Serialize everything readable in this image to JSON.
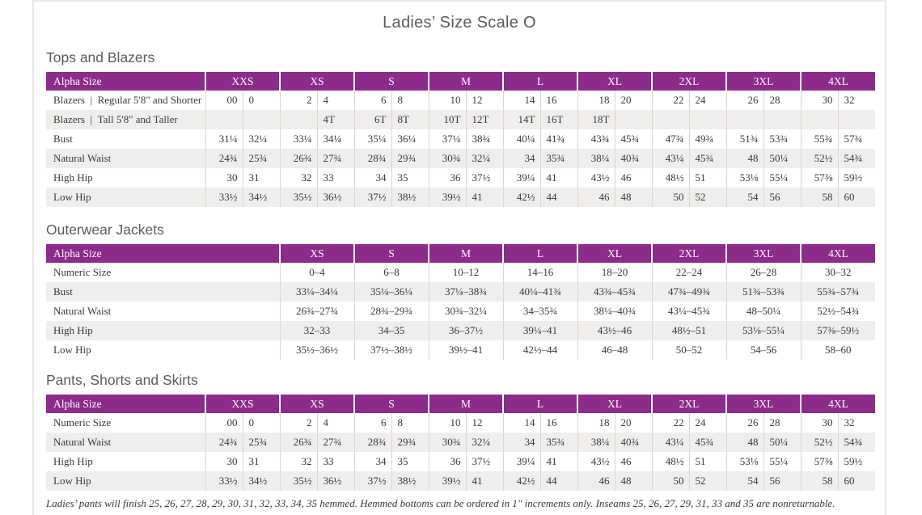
{
  "page": {
    "title": "Ladies’ Size Scale O",
    "footnote": "Ladies’ pants will finish 25, 26, 27, 28, 29, 30, 31, 32, 33, 34, 35 hemmed. Hemmed bottoms can be ordered in 1\" increments only. Inseams 25, 26, 27, 29, 31, 33 and 35 are nonreturnable."
  },
  "colors": {
    "accent_purple": "#8c2b89",
    "row_stripe": "#f0eeec",
    "heading_gray": "#595b5e",
    "cell_border": "#d9d6d3",
    "page_border": "#e9e5e6"
  },
  "tables": [
    {
      "section_title": "Tops and Blazers",
      "corner_label": "Alpha Size",
      "sizes": [
        "XXS",
        "XS",
        "S",
        "M",
        "L",
        "XL",
        "2XL",
        "3XL",
        "4XL"
      ],
      "columns_per_size": 2,
      "rows": [
        {
          "label": "Blazers | Regular 5'8\" and Shorter",
          "values": [
            "00",
            "0",
            "2",
            "4",
            "6",
            "8",
            "10",
            "12",
            "14",
            "16",
            "18",
            "20",
            "22",
            "24",
            "26",
            "28",
            "30",
            "32"
          ]
        },
        {
          "label": "Blazers | Tall 5'8\" and Taller",
          "values": [
            "",
            "",
            "",
            "4T",
            "6T",
            "8T",
            "10T",
            "12T",
            "14T",
            "16T",
            "18T",
            "",
            "",
            "",
            "",
            "",
            "",
            ""
          ]
        },
        {
          "label": "Bust",
          "values": [
            "31¼",
            "32¼",
            "33¼",
            "34¼",
            "35¼",
            "36¼",
            "37¼",
            "38¾",
            "40¼",
            "41¾",
            "43¾",
            "45¾",
            "47¾",
            "49¾",
            "51¾",
            "53¾",
            "55¾",
            "57¾"
          ]
        },
        {
          "label": "Natural Waist",
          "values": [
            "24¾",
            "25¾",
            "26¾",
            "27¾",
            "28¾",
            "29¾",
            "30¾",
            "32¼",
            "34",
            "35¾",
            "38¼",
            "40¾",
            "43¼",
            "45¾",
            "48",
            "50¼",
            "52½",
            "54¾"
          ]
        },
        {
          "label": "High Hip",
          "values": [
            "30",
            "31",
            "32",
            "33",
            "34",
            "35",
            "36",
            "37½",
            "39¼",
            "41",
            "43½",
            "46",
            "48½",
            "51",
            "53⅛",
            "55¼",
            "57⅜",
            "59½"
          ]
        },
        {
          "label": "Low Hip",
          "values": [
            "33½",
            "34½",
            "35½",
            "36½",
            "37½",
            "38½",
            "39½",
            "41",
            "42½",
            "44",
            "46",
            "48",
            "50",
            "52",
            "54",
            "56",
            "58",
            "60"
          ]
        }
      ]
    },
    {
      "section_title": "Outerwear Jackets",
      "corner_label": "Alpha Size",
      "sizes": [
        "XS",
        "S",
        "M",
        "L",
        "XL",
        "2XL",
        "3XL",
        "4XL"
      ],
      "columns_per_size": 1,
      "rows": [
        {
          "label": "Numeric Size",
          "values": [
            "0–4",
            "6–8",
            "10–12",
            "14–16",
            "18–20",
            "22–24",
            "26–28",
            "30–32"
          ]
        },
        {
          "label": "Bust",
          "values": [
            "33¼–34¼",
            "35¼–36¼",
            "37¼–38¾",
            "40¼–41¾",
            "43¾–45¾",
            "47¾–49¾",
            "51¾–53¾",
            "55¾–57¾"
          ]
        },
        {
          "label": "Natural Waist",
          "values": [
            "26¾–27¾",
            "28¾–29¾",
            "30¾–32¼",
            "34–35¾",
            "38¼–40¾",
            "43¼–45¾",
            "48–50¼",
            "52½–54¾"
          ]
        },
        {
          "label": "High Hip",
          "values": [
            "32–33",
            "34–35",
            "36–37½",
            "39¼–41",
            "43½–46",
            "48½–51",
            "53⅛–55¼",
            "57⅜–59½"
          ]
        },
        {
          "label": "Low Hip",
          "values": [
            "35½–36½",
            "37½–38½",
            "39½–41",
            "42½–44",
            "46–48",
            "50–52",
            "54–56",
            "58–60"
          ]
        }
      ]
    },
    {
      "section_title": "Pants, Shorts and Skirts",
      "corner_label": "Alpha Size",
      "sizes": [
        "XXS",
        "XS",
        "S",
        "M",
        "L",
        "XL",
        "2XL",
        "3XL",
        "4XL"
      ],
      "columns_per_size": 2,
      "rows": [
        {
          "label": "Numeric Size",
          "values": [
            "00",
            "0",
            "2",
            "4",
            "6",
            "8",
            "10",
            "12",
            "14",
            "16",
            "18",
            "20",
            "22",
            "24",
            "26",
            "28",
            "30",
            "32"
          ]
        },
        {
          "label": "Natural Waist",
          "values": [
            "24¾",
            "25¾",
            "26¾",
            "27¾",
            "28¾",
            "29¾",
            "30¾",
            "32¼",
            "34",
            "35¾",
            "38¼",
            "40¾",
            "43¼",
            "45¾",
            "48",
            "50¼",
            "52½",
            "54¾"
          ]
        },
        {
          "label": "High Hip",
          "values": [
            "30",
            "31",
            "32",
            "33",
            "34",
            "35",
            "36",
            "37½",
            "39¼",
            "41",
            "43½",
            "46",
            "48½",
            "51",
            "53⅛",
            "55¼",
            "57⅜",
            "59½"
          ]
        },
        {
          "label": "Low Hip",
          "values": [
            "33½",
            "34½",
            "35½",
            "36½",
            "37½",
            "38½",
            "39½",
            "41",
            "42½",
            "44",
            "46",
            "48",
            "50",
            "52",
            "54",
            "56",
            "58",
            "60"
          ]
        }
      ]
    }
  ]
}
